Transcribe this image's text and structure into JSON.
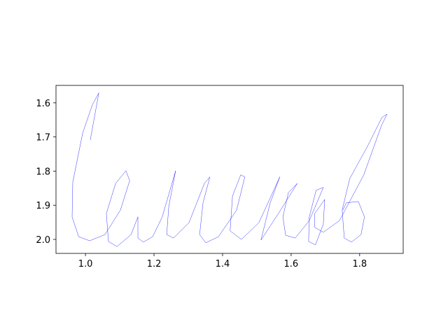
{
  "chart_data": {
    "type": "line",
    "x": [
      1.014,
      1.039,
      1.02,
      0.992,
      0.963,
      0.961,
      0.98,
      1.012,
      1.057,
      1.102,
      1.129,
      1.118,
      1.088,
      1.061,
      1.067,
      1.092,
      1.133,
      1.153,
      1.153,
      1.169,
      1.196,
      1.224,
      1.263,
      1.243,
      1.237,
      1.257,
      1.302,
      1.347,
      1.363,
      1.343,
      1.333,
      1.351,
      1.388,
      1.441,
      1.465,
      1.453,
      1.429,
      1.422,
      1.455,
      1.506,
      1.567,
      1.539,
      1.512,
      1.563,
      1.618,
      1.592,
      1.576,
      1.584,
      1.612,
      1.653,
      1.694,
      1.673,
      1.653,
      1.651,
      1.671,
      1.694,
      1.698,
      1.669,
      1.669,
      1.694,
      1.741,
      1.812,
      1.863,
      1.88,
      1.865,
      1.822,
      1.771,
      1.749,
      1.755,
      1.776,
      1.804,
      1.814,
      1.796,
      1.761,
      1.751
    ],
    "values": [
      1.709,
      1.571,
      1.606,
      1.688,
      1.832,
      1.934,
      1.992,
      2.004,
      1.986,
      1.914,
      1.828,
      1.799,
      1.836,
      1.924,
      2.006,
      2.021,
      1.986,
      1.934,
      1.996,
      2.008,
      1.992,
      1.934,
      1.799,
      1.904,
      1.986,
      1.996,
      1.951,
      1.836,
      1.817,
      1.893,
      1.986,
      2.01,
      1.992,
      1.914,
      1.817,
      1.811,
      1.873,
      1.975,
      2.0,
      1.951,
      1.817,
      1.893,
      2.002,
      1.924,
      1.836,
      1.863,
      1.934,
      1.988,
      1.996,
      1.945,
      1.848,
      1.856,
      1.934,
      2.006,
      2.016,
      1.955,
      1.883,
      1.924,
      1.965,
      1.979,
      1.945,
      1.811,
      1.668,
      1.633,
      1.643,
      1.729,
      1.822,
      1.914,
      1.996,
      2.008,
      1.986,
      1.934,
      1.889,
      1.893,
      1.914
    ],
    "color": "#0000ff",
    "xlim": [
      0.914,
      1.927
    ],
    "ylim": [
      2.041,
      1.549
    ],
    "xticks": [
      {
        "value": 1.0,
        "label": "1.0"
      },
      1.2,
      1.4,
      1.6,
      1.8
    ],
    "yticks": [
      1.6,
      1.7,
      1.8,
      1.9,
      {
        "value": 2.0,
        "label": "2.0"
      }
    ]
  }
}
